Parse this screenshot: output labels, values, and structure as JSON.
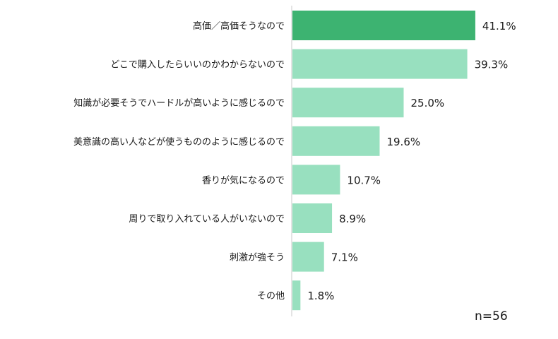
{
  "chart_data": {
    "type": "bar",
    "orientation": "horizontal",
    "categories": [
      "高価／高価そうなので",
      "どこで購入したらいいのかわからないので",
      "知識が必要そうでハードルが高いように感じるので",
      "美意識の高い人などが使うもののように感じるので",
      "香りが気になるので",
      "周りで取り入れている人がいないので",
      "刺激が強そう",
      "その他"
    ],
    "values": [
      41.1,
      39.3,
      25.0,
      19.6,
      10.7,
      8.9,
      7.1,
      1.8
    ],
    "value_labels": [
      "41.1%",
      "39.3%",
      "25.0%",
      "19.6%",
      "10.7%",
      "8.9%",
      "7.1%",
      "1.8%"
    ],
    "xlim": [
      0,
      50
    ],
    "grid": false,
    "legend": "none",
    "annotation": "n=56"
  },
  "colors": {
    "highlight_bar": "#3db371",
    "bar": "#98e0bf",
    "axis": "#c8c8c8"
  }
}
